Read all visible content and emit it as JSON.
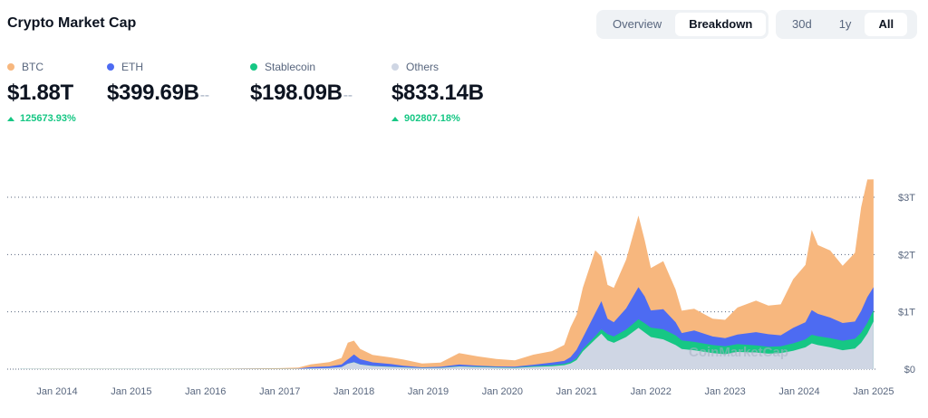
{
  "header": {
    "title": "Crypto Market Cap",
    "view_tabs": [
      {
        "label": "Overview",
        "active": false
      },
      {
        "label": "Breakdown",
        "active": true
      }
    ],
    "range_tabs": [
      {
        "label": "30d",
        "active": false
      },
      {
        "label": "1y",
        "active": false
      },
      {
        "label": "All",
        "active": true
      }
    ]
  },
  "legend": [
    {
      "name": "BTC",
      "color": "#f7b77e",
      "value": "$1.88T",
      "change": "125673.93%"
    },
    {
      "name": "ETH",
      "color": "#4d6bf2",
      "value": "$399.69B",
      "change": "--"
    },
    {
      "name": "Stablecoin",
      "color": "#16c784",
      "value": "$198.09B",
      "change": "--"
    },
    {
      "name": "Others",
      "color": "#cfd6e4",
      "value": "$833.14B",
      "change": "902807.18%"
    }
  ],
  "watermark": "CoinMarketCap",
  "chart_data": {
    "type": "area",
    "stacked": true,
    "x_ticks": [
      "Jan 2014",
      "Jan 2015",
      "Jan 2016",
      "Jan 2017",
      "Jan 2018",
      "Jan 2019",
      "Jan 2020",
      "Jan 2021",
      "Jan 2022",
      "Jan 2023",
      "Jan 2024",
      "Jan 2025"
    ],
    "y_ticks": [
      "$0",
      "$1T",
      "$2T",
      "$3T"
    ],
    "ylim": [
      0,
      3700
    ],
    "y_unit": "billion USD",
    "grid": "horizontal dotted",
    "x": [
      "2013-07",
      "2014-01",
      "2014-07",
      "2015-01",
      "2015-07",
      "2016-01",
      "2016-07",
      "2017-01",
      "2017-04",
      "2017-06",
      "2017-09",
      "2017-11",
      "2017-12",
      "2018-01",
      "2018-02",
      "2018-04",
      "2018-07",
      "2018-09",
      "2018-12",
      "2019-03",
      "2019-06",
      "2019-09",
      "2019-12",
      "2020-03",
      "2020-06",
      "2020-09",
      "2020-11",
      "2020-12",
      "2021-01",
      "2021-02",
      "2021-04",
      "2021-05",
      "2021-06",
      "2021-07",
      "2021-09",
      "2021-11",
      "2021-12",
      "2022-01",
      "2022-03",
      "2022-05",
      "2022-06",
      "2022-08",
      "2022-11",
      "2023-01",
      "2023-03",
      "2023-06",
      "2023-08",
      "2023-10",
      "2023-12",
      "2024-02",
      "2024-03",
      "2024-04",
      "2024-06",
      "2024-08",
      "2024-10",
      "2024-11",
      "2024-12",
      "2025-01"
    ],
    "series": [
      {
        "name": "Others",
        "values": [
          1,
          2,
          1,
          1,
          1,
          1,
          2,
          3,
          6,
          12,
          20,
          35,
          95,
          120,
          80,
          55,
          40,
          30,
          18,
          22,
          45,
          35,
          28,
          22,
          40,
          50,
          70,
          100,
          160,
          310,
          520,
          620,
          500,
          460,
          560,
          720,
          640,
          560,
          520,
          420,
          350,
          330,
          280,
          260,
          300,
          290,
          270,
          280,
          320,
          380,
          450,
          420,
          380,
          330,
          360,
          460,
          620,
          833
        ]
      },
      {
        "name": "Stablecoin",
        "values": [
          0,
          0,
          0,
          0,
          0,
          0,
          0,
          0,
          0,
          0,
          0,
          0,
          1,
          2,
          3,
          3,
          3,
          3,
          3,
          4,
          5,
          7,
          5,
          7,
          12,
          20,
          23,
          25,
          30,
          40,
          55,
          75,
          110,
          110,
          130,
          150,
          160,
          165,
          175,
          170,
          150,
          145,
          140,
          140,
          135,
          125,
          120,
          120,
          130,
          140,
          150,
          155,
          160,
          165,
          170,
          175,
          190,
          198
        ]
      },
      {
        "name": "ETH",
        "values": [
          0,
          0,
          0,
          0,
          0,
          0,
          1,
          1,
          4,
          25,
          28,
          45,
          75,
          135,
          90,
          60,
          45,
          25,
          10,
          15,
          30,
          20,
          15,
          15,
          25,
          45,
          50,
          85,
          150,
          200,
          400,
          490,
          270,
          250,
          370,
          560,
          470,
          300,
          350,
          230,
          130,
          200,
          150,
          140,
          170,
          230,
          220,
          190,
          270,
          300,
          430,
          390,
          360,
          310,
          300,
          380,
          450,
          400
        ]
      },
      {
        "name": "BTC",
        "values": [
          1,
          6,
          5,
          4,
          4,
          5,
          10,
          14,
          19,
          45,
          75,
          115,
          290,
          240,
          180,
          130,
          115,
          110,
          67,
          75,
          200,
          160,
          130,
          110,
          175,
          200,
          280,
          520,
          610,
          870,
          1100,
          780,
          590,
          600,
          850,
          1250,
          980,
          740,
          840,
          570,
          390,
          380,
          310,
          320,
          470,
          550,
          500,
          540,
          850,
          1000,
          1400,
          1200,
          1170,
          1000,
          1200,
          1810,
          2050,
          1880
        ]
      }
    ]
  }
}
